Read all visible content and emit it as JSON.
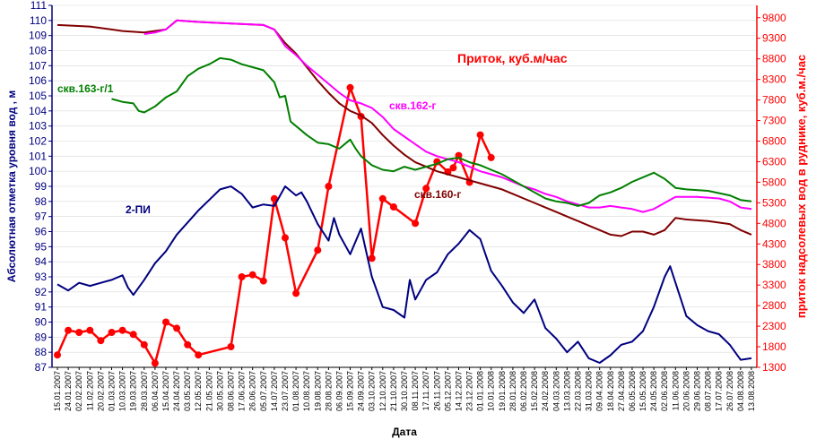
{
  "chart_data": {
    "type": "line",
    "title": "",
    "xlabel": "Дата",
    "ylabel_left": "Абсолютная отметка уровня вод , м",
    "ylabel_right": "приток надсолевых вод в руднике, куб.м./час",
    "flow_label": "Приток, куб.м/час",
    "ylim_left": [
      87,
      111
    ],
    "ylim_right": [
      1300,
      10100
    ],
    "yticks_left": [
      87,
      88,
      89,
      90,
      91,
      92,
      93,
      94,
      95,
      96,
      97,
      98,
      99,
      100,
      101,
      102,
      103,
      104,
      105,
      106,
      107,
      108,
      109,
      110,
      111
    ],
    "yticks_right": [
      1300,
      1800,
      2300,
      2800,
      3300,
      3800,
      4300,
      4800,
      5300,
      5800,
      6300,
      6800,
      7300,
      7800,
      8300,
      8800,
      9300,
      9800
    ],
    "x_dates": [
      "15.01.2007",
      "24.01.2007",
      "02.02.2007",
      "11.02.2007",
      "20.02.2007",
      "01.03.2007",
      "10.03.2007",
      "19.03.2007",
      "28.03.2007",
      "06.04.2007",
      "15.04.2007",
      "24.04.2007",
      "03.05.2007",
      "12.05.2007",
      "21.05.2007",
      "30.05.2007",
      "08.06.2007",
      "17.06.2007",
      "26.06.2007",
      "05.07.2007",
      "14.07.2007",
      "23.07.2007",
      "01.08.2007",
      "10.08.2007",
      "19.08.2007",
      "28.08.2007",
      "06.09.2007",
      "15.09.2007",
      "24.09.2007",
      "03.10.2007",
      "12.10.2007",
      "21.10.2007",
      "30.10.2007",
      "08.11.2007",
      "17.11.2007",
      "26.11.2007",
      "05.12.2007",
      "14.12.2007",
      "23.12.2007",
      "01.01.2008",
      "10.01.2008",
      "19.01.2008",
      "28.01.2008",
      "06.02.2008",
      "15.02.2008",
      "24.02.2008",
      "04.03.2008",
      "13.03.2008",
      "22.03.2008",
      "31.03.2008",
      "09.04.2008",
      "18.04.2008",
      "27.04.2008",
      "06.05.2008",
      "15.05.2008",
      "24.05.2008",
      "02.06.2008",
      "11.06.2008",
      "20.06.2008",
      "29.06.2008",
      "08.07.2008",
      "17.07.2008",
      "26.07.2008",
      "04.08.2008",
      "13.08.2008"
    ],
    "series": [
      {
        "name": "скв.160-г",
        "axis": "left",
        "color": "#800000",
        "points": [
          [
            0,
            109.7
          ],
          [
            3,
            109.6
          ],
          [
            6,
            109.3
          ],
          [
            8,
            109.2
          ],
          [
            10,
            109.4
          ],
          [
            11,
            110.0
          ],
          [
            13,
            109.9
          ],
          [
            16,
            109.8
          ],
          [
            19,
            109.7
          ],
          [
            20,
            109.4
          ],
          [
            21,
            108.5
          ],
          [
            22,
            107.8
          ],
          [
            23,
            106.9
          ],
          [
            24,
            106.0
          ],
          [
            25,
            105.2
          ],
          [
            26,
            104.5
          ],
          [
            27,
            104.0
          ],
          [
            28,
            103.7
          ],
          [
            29,
            103.2
          ],
          [
            30,
            102.4
          ],
          [
            31,
            101.7
          ],
          [
            32,
            101.1
          ],
          [
            33,
            100.6
          ],
          [
            34,
            100.3
          ],
          [
            35,
            100.0
          ],
          [
            36,
            99.8
          ],
          [
            37,
            99.6
          ],
          [
            38,
            99.4
          ],
          [
            39,
            99.2
          ],
          [
            40,
            99.0
          ],
          [
            41,
            98.8
          ],
          [
            42,
            98.5
          ],
          [
            43,
            98.2
          ],
          [
            44,
            97.9
          ],
          [
            45,
            97.6
          ],
          [
            46,
            97.3
          ],
          [
            47,
            97.0
          ],
          [
            48,
            96.7
          ],
          [
            49,
            96.4
          ],
          [
            50,
            96.1
          ],
          [
            51,
            95.8
          ],
          [
            52,
            95.7
          ],
          [
            53,
            96.0
          ],
          [
            54,
            96.0
          ],
          [
            55,
            95.8
          ],
          [
            56,
            96.1
          ],
          [
            57,
            96.9
          ],
          [
            58,
            96.8
          ],
          [
            60,
            96.7
          ],
          [
            62,
            96.5
          ],
          [
            63,
            96.1
          ],
          [
            64,
            95.8
          ]
        ]
      },
      {
        "name": "скв.162-г",
        "axis": "left",
        "color": "#ff00ff",
        "points": [
          [
            8,
            109.1
          ],
          [
            9,
            109.2
          ],
          [
            10,
            109.4
          ],
          [
            11,
            110.0
          ],
          [
            13,
            109.9
          ],
          [
            16,
            109.8
          ],
          [
            19,
            109.7
          ],
          [
            20,
            109.4
          ],
          [
            21,
            108.3
          ],
          [
            22,
            107.7
          ],
          [
            23,
            107.0
          ],
          [
            24,
            106.4
          ],
          [
            25,
            105.8
          ],
          [
            26,
            105.2
          ],
          [
            27,
            104.7
          ],
          [
            28,
            104.5
          ],
          [
            29,
            104.2
          ],
          [
            30,
            103.6
          ],
          [
            31,
            102.8
          ],
          [
            32,
            102.3
          ],
          [
            33,
            101.8
          ],
          [
            34,
            101.3
          ],
          [
            35,
            101.0
          ],
          [
            36,
            100.8
          ],
          [
            37,
            100.6
          ],
          [
            38,
            100.3
          ],
          [
            39,
            100.0
          ],
          [
            40,
            99.8
          ],
          [
            41,
            99.6
          ],
          [
            42,
            99.3
          ],
          [
            43,
            99.0
          ],
          [
            44,
            98.8
          ],
          [
            45,
            98.5
          ],
          [
            46,
            98.3
          ],
          [
            47,
            98.0
          ],
          [
            48,
            97.8
          ],
          [
            49,
            97.6
          ],
          [
            50,
            97.6
          ],
          [
            51,
            97.7
          ],
          [
            52,
            97.6
          ],
          [
            53,
            97.5
          ],
          [
            54,
            97.3
          ],
          [
            55,
            97.5
          ],
          [
            56,
            97.9
          ],
          [
            57,
            98.3
          ],
          [
            59,
            98.3
          ],
          [
            61,
            98.2
          ],
          [
            62,
            98.0
          ],
          [
            63,
            97.6
          ],
          [
            64,
            97.5
          ]
        ]
      },
      {
        "name": "скв.163-г/1",
        "axis": "left",
        "color": "#008000",
        "points": [
          [
            5,
            104.8
          ],
          [
            6,
            104.6
          ],
          [
            7,
            104.5
          ],
          [
            7.5,
            104.0
          ],
          [
            8,
            103.9
          ],
          [
            9,
            104.3
          ],
          [
            10,
            104.9
          ],
          [
            11,
            105.3
          ],
          [
            12,
            106.3
          ],
          [
            13,
            106.8
          ],
          [
            14,
            107.1
          ],
          [
            15,
            107.5
          ],
          [
            16,
            107.4
          ],
          [
            17,
            107.1
          ],
          [
            18,
            106.9
          ],
          [
            19,
            106.7
          ],
          [
            20,
            105.9
          ],
          [
            20.5,
            104.9
          ],
          [
            21,
            105.0
          ],
          [
            21.5,
            103.3
          ],
          [
            22,
            103.0
          ],
          [
            23,
            102.4
          ],
          [
            24,
            101.9
          ],
          [
            25,
            101.8
          ],
          [
            26,
            101.5
          ],
          [
            27,
            102.1
          ],
          [
            27.5,
            101.5
          ],
          [
            28,
            101.0
          ],
          [
            29,
            100.4
          ],
          [
            30,
            100.1
          ],
          [
            31,
            100.0
          ],
          [
            32,
            100.3
          ],
          [
            33,
            100.1
          ],
          [
            34,
            100.3
          ],
          [
            35,
            100.5
          ],
          [
            36,
            100.8
          ],
          [
            37,
            100.9
          ],
          [
            38,
            100.6
          ],
          [
            39,
            100.4
          ],
          [
            40,
            100.1
          ],
          [
            41,
            99.8
          ],
          [
            42,
            99.4
          ],
          [
            43,
            99.0
          ],
          [
            44,
            98.6
          ],
          [
            45,
            98.2
          ],
          [
            46,
            98.0
          ],
          [
            47,
            97.9
          ],
          [
            48,
            97.7
          ],
          [
            49,
            97.9
          ],
          [
            50,
            98.4
          ],
          [
            51,
            98.6
          ],
          [
            52,
            98.9
          ],
          [
            53,
            99.3
          ],
          [
            54,
            99.6
          ],
          [
            55,
            99.9
          ],
          [
            56,
            99.5
          ],
          [
            57,
            98.9
          ],
          [
            58,
            98.8
          ],
          [
            60,
            98.7
          ],
          [
            62,
            98.4
          ],
          [
            63,
            98.1
          ],
          [
            64,
            98.0
          ]
        ]
      },
      {
        "name": "2-ПИ",
        "axis": "left",
        "color": "#000080",
        "points": [
          [
            0,
            92.5
          ],
          [
            1,
            92.1
          ],
          [
            2,
            92.6
          ],
          [
            3,
            92.4
          ],
          [
            4,
            92.6
          ],
          [
            5,
            92.8
          ],
          [
            6,
            93.1
          ],
          [
            6.5,
            92.3
          ],
          [
            7,
            91.8
          ],
          [
            8,
            92.8
          ],
          [
            9,
            93.9
          ],
          [
            10,
            94.7
          ],
          [
            11,
            95.8
          ],
          [
            12,
            96.6
          ],
          [
            13,
            97.4
          ],
          [
            14,
            98.1
          ],
          [
            15,
            98.8
          ],
          [
            16,
            99.0
          ],
          [
            17,
            98.5
          ],
          [
            18,
            97.6
          ],
          [
            19,
            97.8
          ],
          [
            20,
            97.7
          ],
          [
            21,
            99.0
          ],
          [
            22,
            98.4
          ],
          [
            22.5,
            98.6
          ],
          [
            23,
            98.0
          ],
          [
            24,
            96.5
          ],
          [
            25,
            95.4
          ],
          [
            25.5,
            96.9
          ],
          [
            26,
            95.8
          ],
          [
            27,
            94.5
          ],
          [
            28,
            96.2
          ],
          [
            29,
            93.0
          ],
          [
            30,
            91.0
          ],
          [
            31,
            90.8
          ],
          [
            32,
            90.3
          ],
          [
            32.5,
            92.8
          ],
          [
            33,
            91.5
          ],
          [
            34,
            92.8
          ],
          [
            35,
            93.3
          ],
          [
            36,
            94.5
          ],
          [
            37,
            95.2
          ],
          [
            38,
            96.1
          ],
          [
            39,
            95.5
          ],
          [
            40,
            93.4
          ],
          [
            41,
            92.4
          ],
          [
            42,
            91.3
          ],
          [
            43,
            90.6
          ],
          [
            44,
            91.5
          ],
          [
            45,
            89.6
          ],
          [
            46,
            88.9
          ],
          [
            47,
            88.0
          ],
          [
            48,
            88.7
          ],
          [
            49,
            87.6
          ],
          [
            50,
            87.3
          ],
          [
            51,
            87.8
          ],
          [
            52,
            88.5
          ],
          [
            53,
            88.7
          ],
          [
            54,
            89.4
          ],
          [
            55,
            91.0
          ],
          [
            56,
            93.0
          ],
          [
            56.5,
            93.7
          ],
          [
            57,
            92.6
          ],
          [
            58,
            90.4
          ],
          [
            59,
            89.8
          ],
          [
            60,
            89.4
          ],
          [
            61,
            89.2
          ],
          [
            62,
            88.5
          ],
          [
            63,
            87.5
          ],
          [
            64,
            87.6
          ]
        ]
      },
      {
        "name": "Приток",
        "axis": "right",
        "color": "#ff0000",
        "points": [
          [
            0,
            1600
          ],
          [
            1,
            2200
          ],
          [
            2,
            2150
          ],
          [
            3,
            2200
          ],
          [
            4,
            1950
          ],
          [
            5,
            2150
          ],
          [
            6,
            2200
          ],
          [
            7,
            2100
          ],
          [
            8,
            1850
          ],
          [
            9,
            1400
          ],
          [
            10,
            2400
          ],
          [
            11,
            2250
          ],
          [
            12,
            1850
          ],
          [
            13,
            1600
          ],
          [
            16,
            1800
          ],
          [
            17,
            3500
          ],
          [
            18,
            3550
          ],
          [
            19,
            3400
          ],
          [
            20,
            5400
          ],
          [
            21,
            4450
          ],
          [
            22,
            3100
          ],
          [
            24,
            4150
          ],
          [
            25,
            5700
          ],
          [
            27,
            8100
          ],
          [
            28,
            7400
          ],
          [
            29,
            3950
          ],
          [
            30,
            5400
          ],
          [
            31,
            5200
          ],
          [
            33,
            4800
          ],
          [
            34,
            5650
          ],
          [
            35,
            6300
          ],
          [
            36,
            6050
          ],
          [
            36.5,
            6150
          ],
          [
            37,
            6450
          ],
          [
            38,
            5800
          ],
          [
            39,
            6950
          ],
          [
            40,
            6400
          ]
        ]
      }
    ]
  },
  "annotations": {
    "s160": "скв.160-г",
    "s162": "скв.162-г",
    "s163": "скв.163-г/1",
    "pi2": "2-ПИ",
    "flow": "Приток, куб.м/час"
  },
  "colors": {
    "left_axis": "#000080",
    "right_axis": "#ff0000"
  }
}
